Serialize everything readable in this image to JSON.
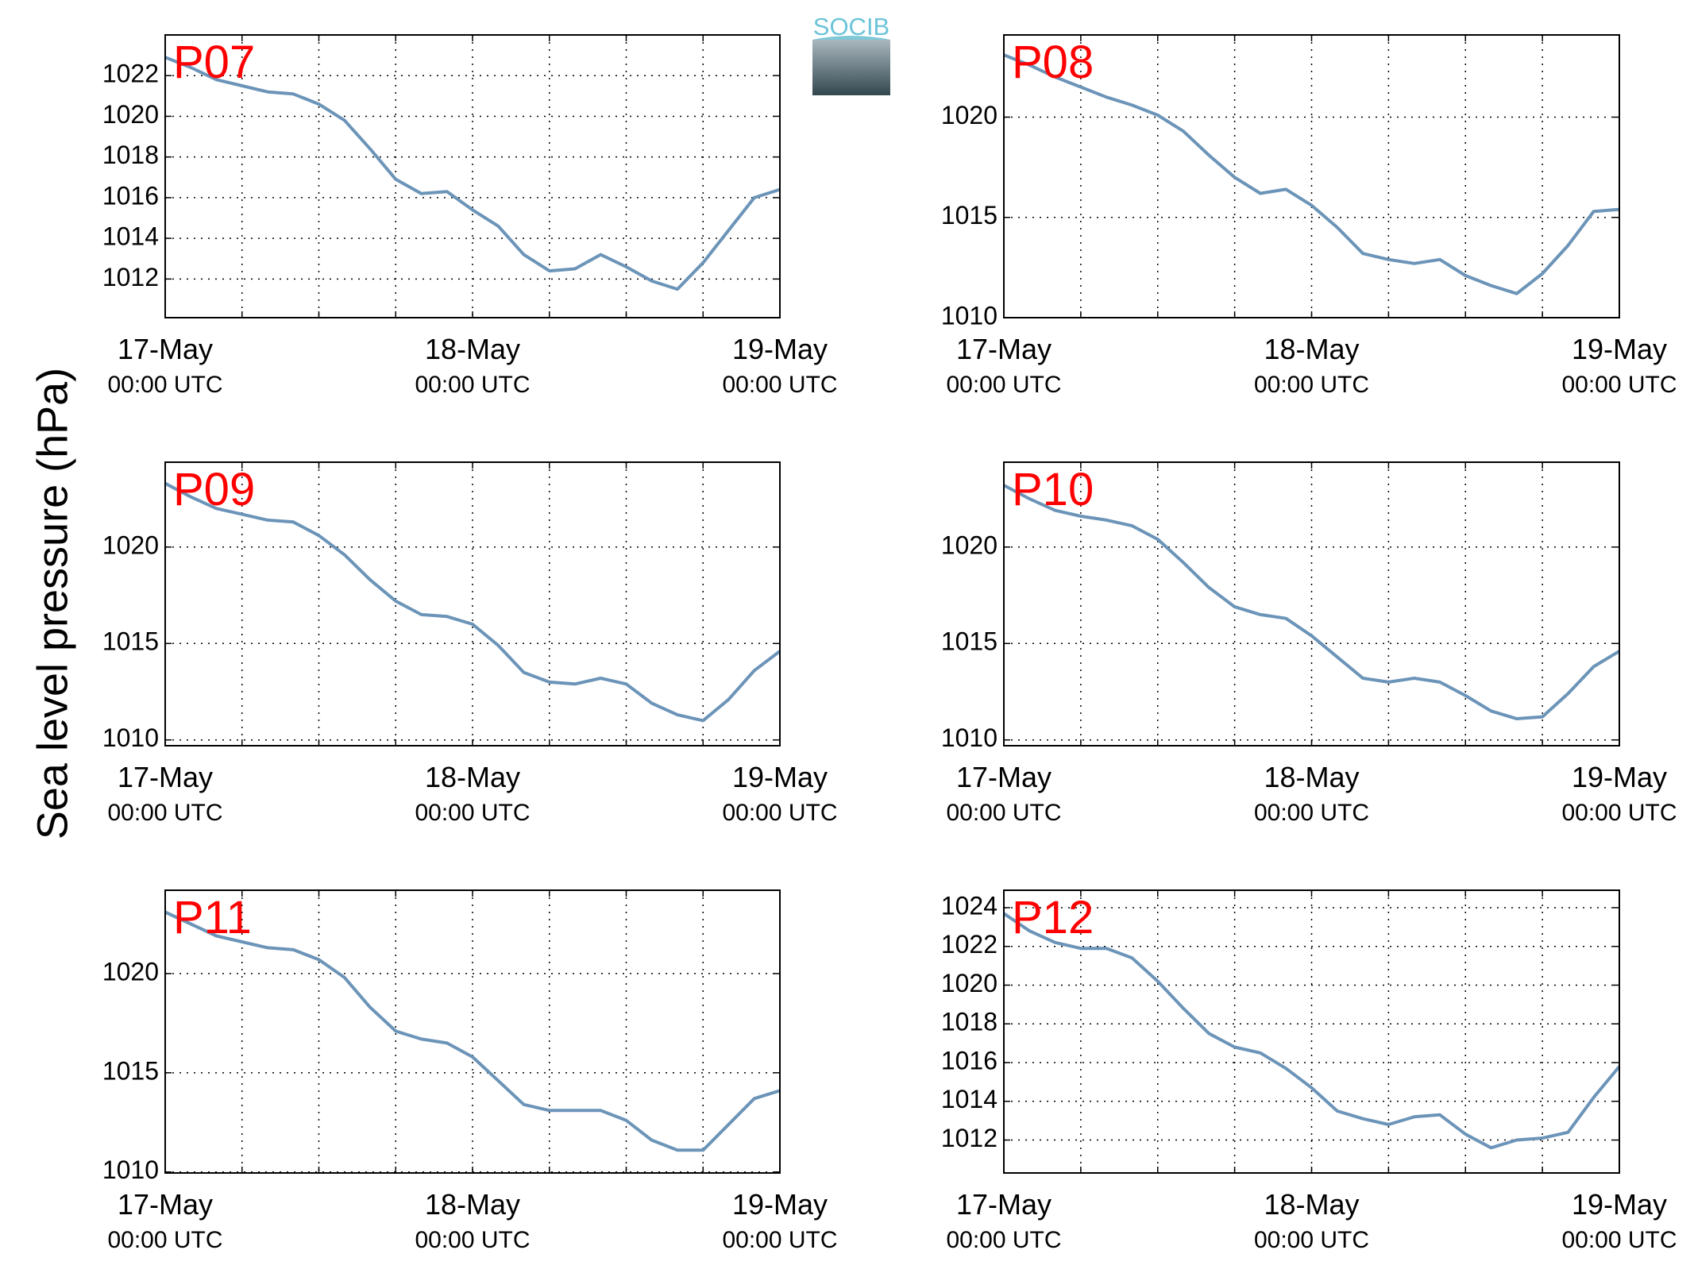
{
  "ylabel": "Sea level pressure (hPa)",
  "logo": "SOCIB",
  "chart_data": [
    {
      "type": "line",
      "title": "P07",
      "grid": true,
      "x": [
        "17-May 00:00",
        "17-May 02:00",
        "17-May 04:00",
        "17-May 06:00",
        "17-May 08:00",
        "17-May 10:00",
        "17-May 12:00",
        "17-May 14:00",
        "17-May 16:00",
        "17-May 18:00",
        "17-May 20:00",
        "17-May 22:00",
        "18-May 00:00",
        "18-May 02:00",
        "18-May 04:00",
        "18-May 06:00",
        "18-May 08:00",
        "18-May 10:00",
        "18-May 12:00",
        "18-May 14:00",
        "18-May 16:00",
        "18-May 18:00",
        "18-May 20:00",
        "18-May 22:00",
        "19-May 00:00"
      ],
      "series": [
        {
          "color": "#6b94b8",
          "values": [
            1022.9,
            1022.4,
            1021.8,
            1021.5,
            1021.2,
            1021.1,
            1020.6,
            1019.8,
            1018.4,
            1016.9,
            1016.2,
            1016.3,
            1015.4,
            1014.6,
            1013.2,
            1012.4,
            1012.5,
            1013.2,
            1012.6,
            1011.9,
            1011.5,
            1012.8,
            1014.4,
            1016.0,
            1016.4
          ]
        }
      ],
      "xlim": [
        "17-May 00:00",
        "19-May 00:00"
      ],
      "ylim": [
        1010.1,
        1024
      ],
      "yticks": [
        1012,
        1014,
        1016,
        1018,
        1020,
        1022
      ],
      "xticks": [
        {
          "value": "17-May 00:00",
          "label": [
            "17-May",
            "00:00 UTC"
          ]
        },
        {
          "value": "17-May 06:00",
          "label": null
        },
        {
          "value": "17-May 12:00",
          "label": null
        },
        {
          "value": "17-May 18:00",
          "label": null
        },
        {
          "value": "18-May 00:00",
          "label": [
            "18-May",
            "00:00 UTC"
          ]
        },
        {
          "value": "18-May 06:00",
          "label": null
        },
        {
          "value": "18-May 12:00",
          "label": null
        },
        {
          "value": "18-May 18:00",
          "label": null
        },
        {
          "value": "19-May 00:00",
          "label": [
            "19-May",
            "00:00 UTC"
          ]
        }
      ]
    },
    {
      "type": "line",
      "title": "P08",
      "grid": true,
      "x": [
        "17-May 00:00",
        "17-May 02:00",
        "17-May 04:00",
        "17-May 06:00",
        "17-May 08:00",
        "17-May 10:00",
        "17-May 12:00",
        "17-May 14:00",
        "17-May 16:00",
        "17-May 18:00",
        "17-May 20:00",
        "17-May 22:00",
        "18-May 00:00",
        "18-May 02:00",
        "18-May 04:00",
        "18-May 06:00",
        "18-May 08:00",
        "18-May 10:00",
        "18-May 12:00",
        "18-May 14:00",
        "18-May 16:00",
        "18-May 18:00",
        "18-May 20:00",
        "18-May 22:00",
        "19-May 00:00"
      ],
      "series": [
        {
          "color": "#6b94b8",
          "values": [
            1023.1,
            1022.6,
            1022.0,
            1021.5,
            1021.0,
            1020.6,
            1020.1,
            1019.3,
            1018.1,
            1017.0,
            1016.2,
            1016.4,
            1015.6,
            1014.5,
            1013.2,
            1012.9,
            1012.7,
            1012.9,
            1012.1,
            1011.6,
            1011.2,
            1012.2,
            1013.6,
            1015.3,
            1015.4
          ]
        }
      ],
      "xlim": [
        "17-May 00:00",
        "19-May 00:00"
      ],
      "ylim": [
        1010,
        1024.1
      ],
      "yticks": [
        1010,
        1015,
        1020
      ],
      "xticks": [
        {
          "value": "17-May 00:00",
          "label": [
            "17-May",
            "00:00 UTC"
          ]
        },
        {
          "value": "17-May 06:00",
          "label": null
        },
        {
          "value": "17-May 12:00",
          "label": null
        },
        {
          "value": "17-May 18:00",
          "label": null
        },
        {
          "value": "18-May 00:00",
          "label": [
            "18-May",
            "00:00 UTC"
          ]
        },
        {
          "value": "18-May 06:00",
          "label": null
        },
        {
          "value": "18-May 12:00",
          "label": null
        },
        {
          "value": "18-May 18:00",
          "label": null
        },
        {
          "value": "19-May 00:00",
          "label": [
            "19-May",
            "00:00 UTC"
          ]
        }
      ]
    },
    {
      "type": "line",
      "title": "P09",
      "grid": true,
      "x": [
        "17-May 00:00",
        "17-May 02:00",
        "17-May 04:00",
        "17-May 06:00",
        "17-May 08:00",
        "17-May 10:00",
        "17-May 12:00",
        "17-May 14:00",
        "17-May 16:00",
        "17-May 18:00",
        "17-May 20:00",
        "17-May 22:00",
        "18-May 00:00",
        "18-May 02:00",
        "18-May 04:00",
        "18-May 06:00",
        "18-May 08:00",
        "18-May 10:00",
        "18-May 12:00",
        "18-May 14:00",
        "18-May 16:00",
        "18-May 18:00",
        "18-May 20:00",
        "18-May 22:00",
        "19-May 00:00"
      ],
      "series": [
        {
          "color": "#6b94b8",
          "values": [
            1023.3,
            1022.6,
            1022.0,
            1021.7,
            1021.4,
            1021.3,
            1020.6,
            1019.6,
            1018.3,
            1017.2,
            1016.5,
            1016.4,
            1016.0,
            1014.9,
            1013.5,
            1013.0,
            1012.9,
            1013.2,
            1012.9,
            1011.9,
            1011.3,
            1011.0,
            1012.1,
            1013.6,
            1014.6
          ]
        }
      ],
      "xlim": [
        "17-May 00:00",
        "19-May 00:00"
      ],
      "ylim": [
        1009.7,
        1024.4
      ],
      "yticks": [
        1010,
        1015,
        1020
      ],
      "xticks": [
        {
          "value": "17-May 00:00",
          "label": [
            "17-May",
            "00:00 UTC"
          ]
        },
        {
          "value": "17-May 06:00",
          "label": null
        },
        {
          "value": "17-May 12:00",
          "label": null
        },
        {
          "value": "17-May 18:00",
          "label": null
        },
        {
          "value": "18-May 00:00",
          "label": [
            "18-May",
            "00:00 UTC"
          ]
        },
        {
          "value": "18-May 06:00",
          "label": null
        },
        {
          "value": "18-May 12:00",
          "label": null
        },
        {
          "value": "18-May 18:00",
          "label": null
        },
        {
          "value": "19-May 00:00",
          "label": [
            "19-May",
            "00:00 UTC"
          ]
        }
      ]
    },
    {
      "type": "line",
      "title": "P10",
      "grid": true,
      "x": [
        "17-May 00:00",
        "17-May 02:00",
        "17-May 04:00",
        "17-May 06:00",
        "17-May 08:00",
        "17-May 10:00",
        "17-May 12:00",
        "17-May 14:00",
        "17-May 16:00",
        "17-May 18:00",
        "17-May 20:00",
        "17-May 22:00",
        "18-May 00:00",
        "18-May 02:00",
        "18-May 04:00",
        "18-May 06:00",
        "18-May 08:00",
        "18-May 10:00",
        "18-May 12:00",
        "18-May 14:00",
        "18-May 16:00",
        "18-May 18:00",
        "18-May 20:00",
        "18-May 22:00",
        "19-May 00:00"
      ],
      "series": [
        {
          "color": "#6b94b8",
          "values": [
            1023.2,
            1022.5,
            1021.9,
            1021.6,
            1021.4,
            1021.1,
            1020.4,
            1019.2,
            1017.9,
            1016.9,
            1016.5,
            1016.3,
            1015.4,
            1014.3,
            1013.2,
            1013.0,
            1013.2,
            1013.0,
            1012.3,
            1011.5,
            1011.1,
            1011.2,
            1012.4,
            1013.8,
            1014.6
          ]
        }
      ],
      "xlim": [
        "17-May 00:00",
        "19-May 00:00"
      ],
      "ylim": [
        1009.7,
        1024.4
      ],
      "yticks": [
        1010,
        1015,
        1020
      ],
      "xticks": [
        {
          "value": "17-May 00:00",
          "label": [
            "17-May",
            "00:00 UTC"
          ]
        },
        {
          "value": "17-May 06:00",
          "label": null
        },
        {
          "value": "17-May 12:00",
          "label": null
        },
        {
          "value": "17-May 18:00",
          "label": null
        },
        {
          "value": "18-May 00:00",
          "label": [
            "18-May",
            "00:00 UTC"
          ]
        },
        {
          "value": "18-May 06:00",
          "label": null
        },
        {
          "value": "18-May 12:00",
          "label": null
        },
        {
          "value": "18-May 18:00",
          "label": null
        },
        {
          "value": "19-May 00:00",
          "label": [
            "19-May",
            "00:00 UTC"
          ]
        }
      ]
    },
    {
      "type": "line",
      "title": "P11",
      "grid": true,
      "x": [
        "17-May 00:00",
        "17-May 02:00",
        "17-May 04:00",
        "17-May 06:00",
        "17-May 08:00",
        "17-May 10:00",
        "17-May 12:00",
        "17-May 14:00",
        "17-May 16:00",
        "17-May 18:00",
        "17-May 20:00",
        "17-May 22:00",
        "18-May 00:00",
        "18-May 02:00",
        "18-May 04:00",
        "18-May 06:00",
        "18-May 08:00",
        "18-May 10:00",
        "18-May 12:00",
        "18-May 14:00",
        "18-May 16:00",
        "18-May 18:00",
        "18-May 20:00",
        "18-May 22:00",
        "19-May 00:00"
      ],
      "series": [
        {
          "color": "#6b94b8",
          "values": [
            1023.1,
            1022.5,
            1021.9,
            1021.6,
            1021.3,
            1021.2,
            1020.7,
            1019.8,
            1018.3,
            1017.1,
            1016.7,
            1016.5,
            1015.8,
            1014.6,
            1013.4,
            1013.1,
            1013.1,
            1013.1,
            1012.6,
            1011.6,
            1011.1,
            1011.1,
            1012.4,
            1013.7,
            1014.1
          ]
        }
      ],
      "xlim": [
        "17-May 00:00",
        "19-May 00:00"
      ],
      "ylim": [
        1009.95,
        1024.2
      ],
      "yticks": [
        1010,
        1015,
        1020
      ],
      "xticks": [
        {
          "value": "17-May 00:00",
          "label": [
            "17-May",
            "00:00 UTC"
          ]
        },
        {
          "value": "17-May 06:00",
          "label": null
        },
        {
          "value": "17-May 12:00",
          "label": null
        },
        {
          "value": "17-May 18:00",
          "label": null
        },
        {
          "value": "18-May 00:00",
          "label": [
            "18-May",
            "00:00 UTC"
          ]
        },
        {
          "value": "18-May 06:00",
          "label": null
        },
        {
          "value": "18-May 12:00",
          "label": null
        },
        {
          "value": "18-May 18:00",
          "label": null
        },
        {
          "value": "19-May 00:00",
          "label": [
            "19-May",
            "00:00 UTC"
          ]
        }
      ]
    },
    {
      "type": "line",
      "title": "P12",
      "grid": true,
      "x": [
        "17-May 00:00",
        "17-May 02:00",
        "17-May 04:00",
        "17-May 06:00",
        "17-May 08:00",
        "17-May 10:00",
        "17-May 12:00",
        "17-May 14:00",
        "17-May 16:00",
        "17-May 18:00",
        "17-May 20:00",
        "17-May 22:00",
        "18-May 00:00",
        "18-May 02:00",
        "18-May 04:00",
        "18-May 06:00",
        "18-May 08:00",
        "18-May 10:00",
        "18-May 12:00",
        "18-May 14:00",
        "18-May 16:00",
        "18-May 18:00",
        "18-May 20:00",
        "18-May 22:00",
        "19-May 00:00"
      ],
      "series": [
        {
          "color": "#6b94b8",
          "values": [
            1023.7,
            1022.8,
            1022.2,
            1021.9,
            1021.9,
            1021.4,
            1020.2,
            1018.8,
            1017.5,
            1016.8,
            1016.5,
            1015.7,
            1014.7,
            1013.5,
            1013.1,
            1012.8,
            1013.2,
            1013.3,
            1012.3,
            1011.6,
            1012.0,
            1012.1,
            1012.4,
            1014.2,
            1015.8
          ]
        }
      ],
      "xlim": [
        "17-May 00:00",
        "19-May 00:00"
      ],
      "ylim": [
        1010.3,
        1024.9
      ],
      "yticks": [
        1012,
        1014,
        1016,
        1018,
        1020,
        1022,
        1024
      ],
      "xticks": [
        {
          "value": "17-May 00:00",
          "label": [
            "17-May",
            "00:00 UTC"
          ]
        },
        {
          "value": "17-May 06:00",
          "label": null
        },
        {
          "value": "17-May 12:00",
          "label": null
        },
        {
          "value": "17-May 18:00",
          "label": null
        },
        {
          "value": "18-May 00:00",
          "label": [
            "18-May",
            "00:00 UTC"
          ]
        },
        {
          "value": "18-May 06:00",
          "label": null
        },
        {
          "value": "18-May 12:00",
          "label": null
        },
        {
          "value": "18-May 18:00",
          "label": null
        },
        {
          "value": "19-May 00:00",
          "label": [
            "19-May",
            "00:00 UTC"
          ]
        }
      ]
    }
  ]
}
